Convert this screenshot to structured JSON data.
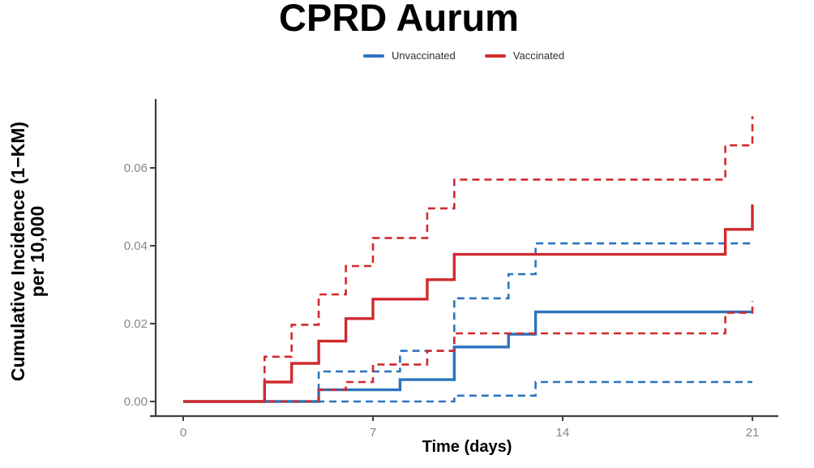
{
  "title": "CPRD Aurum",
  "legend": {
    "items": [
      {
        "label": "Unvaccinated",
        "color": "#2B74BE"
      },
      {
        "label": "Vaccinated",
        "color": "#D02A2E"
      }
    ]
  },
  "axes": {
    "y_label_line1": "Cumulative Incidence (1−KM)",
    "y_label_line2": "per 10,000",
    "x_label": "Time (days)",
    "x_tick_labels": [
      "0",
      "7",
      "14",
      "21"
    ],
    "y_tick_labels": [
      "0.00",
      "0.02",
      "0.04",
      "0.06"
    ]
  },
  "chart_data": {
    "type": "line",
    "subtype": "kaplan-meier-cumulative-incidence-step",
    "title": "CPRD Aurum",
    "xlabel": "Time (days)",
    "ylabel": "Cumulative Incidence (1−KM) per 10,000",
    "xlim": [
      0,
      21
    ],
    "ylim": [
      0,
      0.078
    ],
    "x_ticks": [
      0,
      7,
      14,
      21
    ],
    "y_ticks": [
      0,
      0.02,
      0.04,
      0.06
    ],
    "grid": false,
    "legend_position": "top-center",
    "series": [
      {
        "name": "Unvaccinated",
        "role": "lower-95ci",
        "color": "#2B74BE",
        "line": "dashed",
        "points": [
          [
            0,
            0
          ],
          [
            10,
            0.0015
          ],
          [
            13,
            0.005
          ],
          [
            21,
            0.005
          ]
        ]
      },
      {
        "name": "Unvaccinated",
        "role": "upper-95ci",
        "color": "#2B74BE",
        "line": "dashed",
        "points": [
          [
            0,
            0
          ],
          [
            5,
            0.0077
          ],
          [
            8,
            0.013
          ],
          [
            10,
            0.0265
          ],
          [
            12,
            0.0327
          ],
          [
            13,
            0.0406
          ],
          [
            21,
            0.0406
          ]
        ]
      },
      {
        "name": "Unvaccinated",
        "role": "estimate",
        "color": "#2B74BE",
        "line": "solid",
        "points": [
          [
            0,
            0
          ],
          [
            5,
            0.003
          ],
          [
            8,
            0.0056
          ],
          [
            10,
            0.014
          ],
          [
            12,
            0.0173
          ],
          [
            13,
            0.023
          ],
          [
            21,
            0.023
          ]
        ]
      },
      {
        "name": "Vaccinated",
        "role": "lower-95ci",
        "color": "#D02A2E",
        "line": "dashed",
        "points": [
          [
            0,
            0
          ],
          [
            5,
            0.003
          ],
          [
            6,
            0.005
          ],
          [
            7,
            0.0095
          ],
          [
            9,
            0.013
          ],
          [
            10,
            0.0175
          ],
          [
            20,
            0.0228
          ],
          [
            21,
            0.0258
          ]
        ]
      },
      {
        "name": "Vaccinated",
        "role": "upper-95ci",
        "color": "#D02A2E",
        "line": "dashed",
        "points": [
          [
            0,
            0
          ],
          [
            3,
            0.0115
          ],
          [
            4,
            0.0197
          ],
          [
            5,
            0.0275
          ],
          [
            6,
            0.0348
          ],
          [
            7,
            0.042
          ],
          [
            9,
            0.0496
          ],
          [
            10,
            0.057
          ],
          [
            20,
            0.0658
          ],
          [
            21,
            0.0733
          ]
        ]
      },
      {
        "name": "Vaccinated",
        "role": "estimate",
        "color": "#D02A2E",
        "line": "solid",
        "points": [
          [
            0,
            0
          ],
          [
            3,
            0.005
          ],
          [
            4,
            0.0098
          ],
          [
            5,
            0.0155
          ],
          [
            6,
            0.0213
          ],
          [
            7,
            0.0263
          ],
          [
            9,
            0.0313
          ],
          [
            10,
            0.0378
          ],
          [
            20,
            0.0442
          ],
          [
            21,
            0.0506
          ]
        ]
      }
    ]
  }
}
